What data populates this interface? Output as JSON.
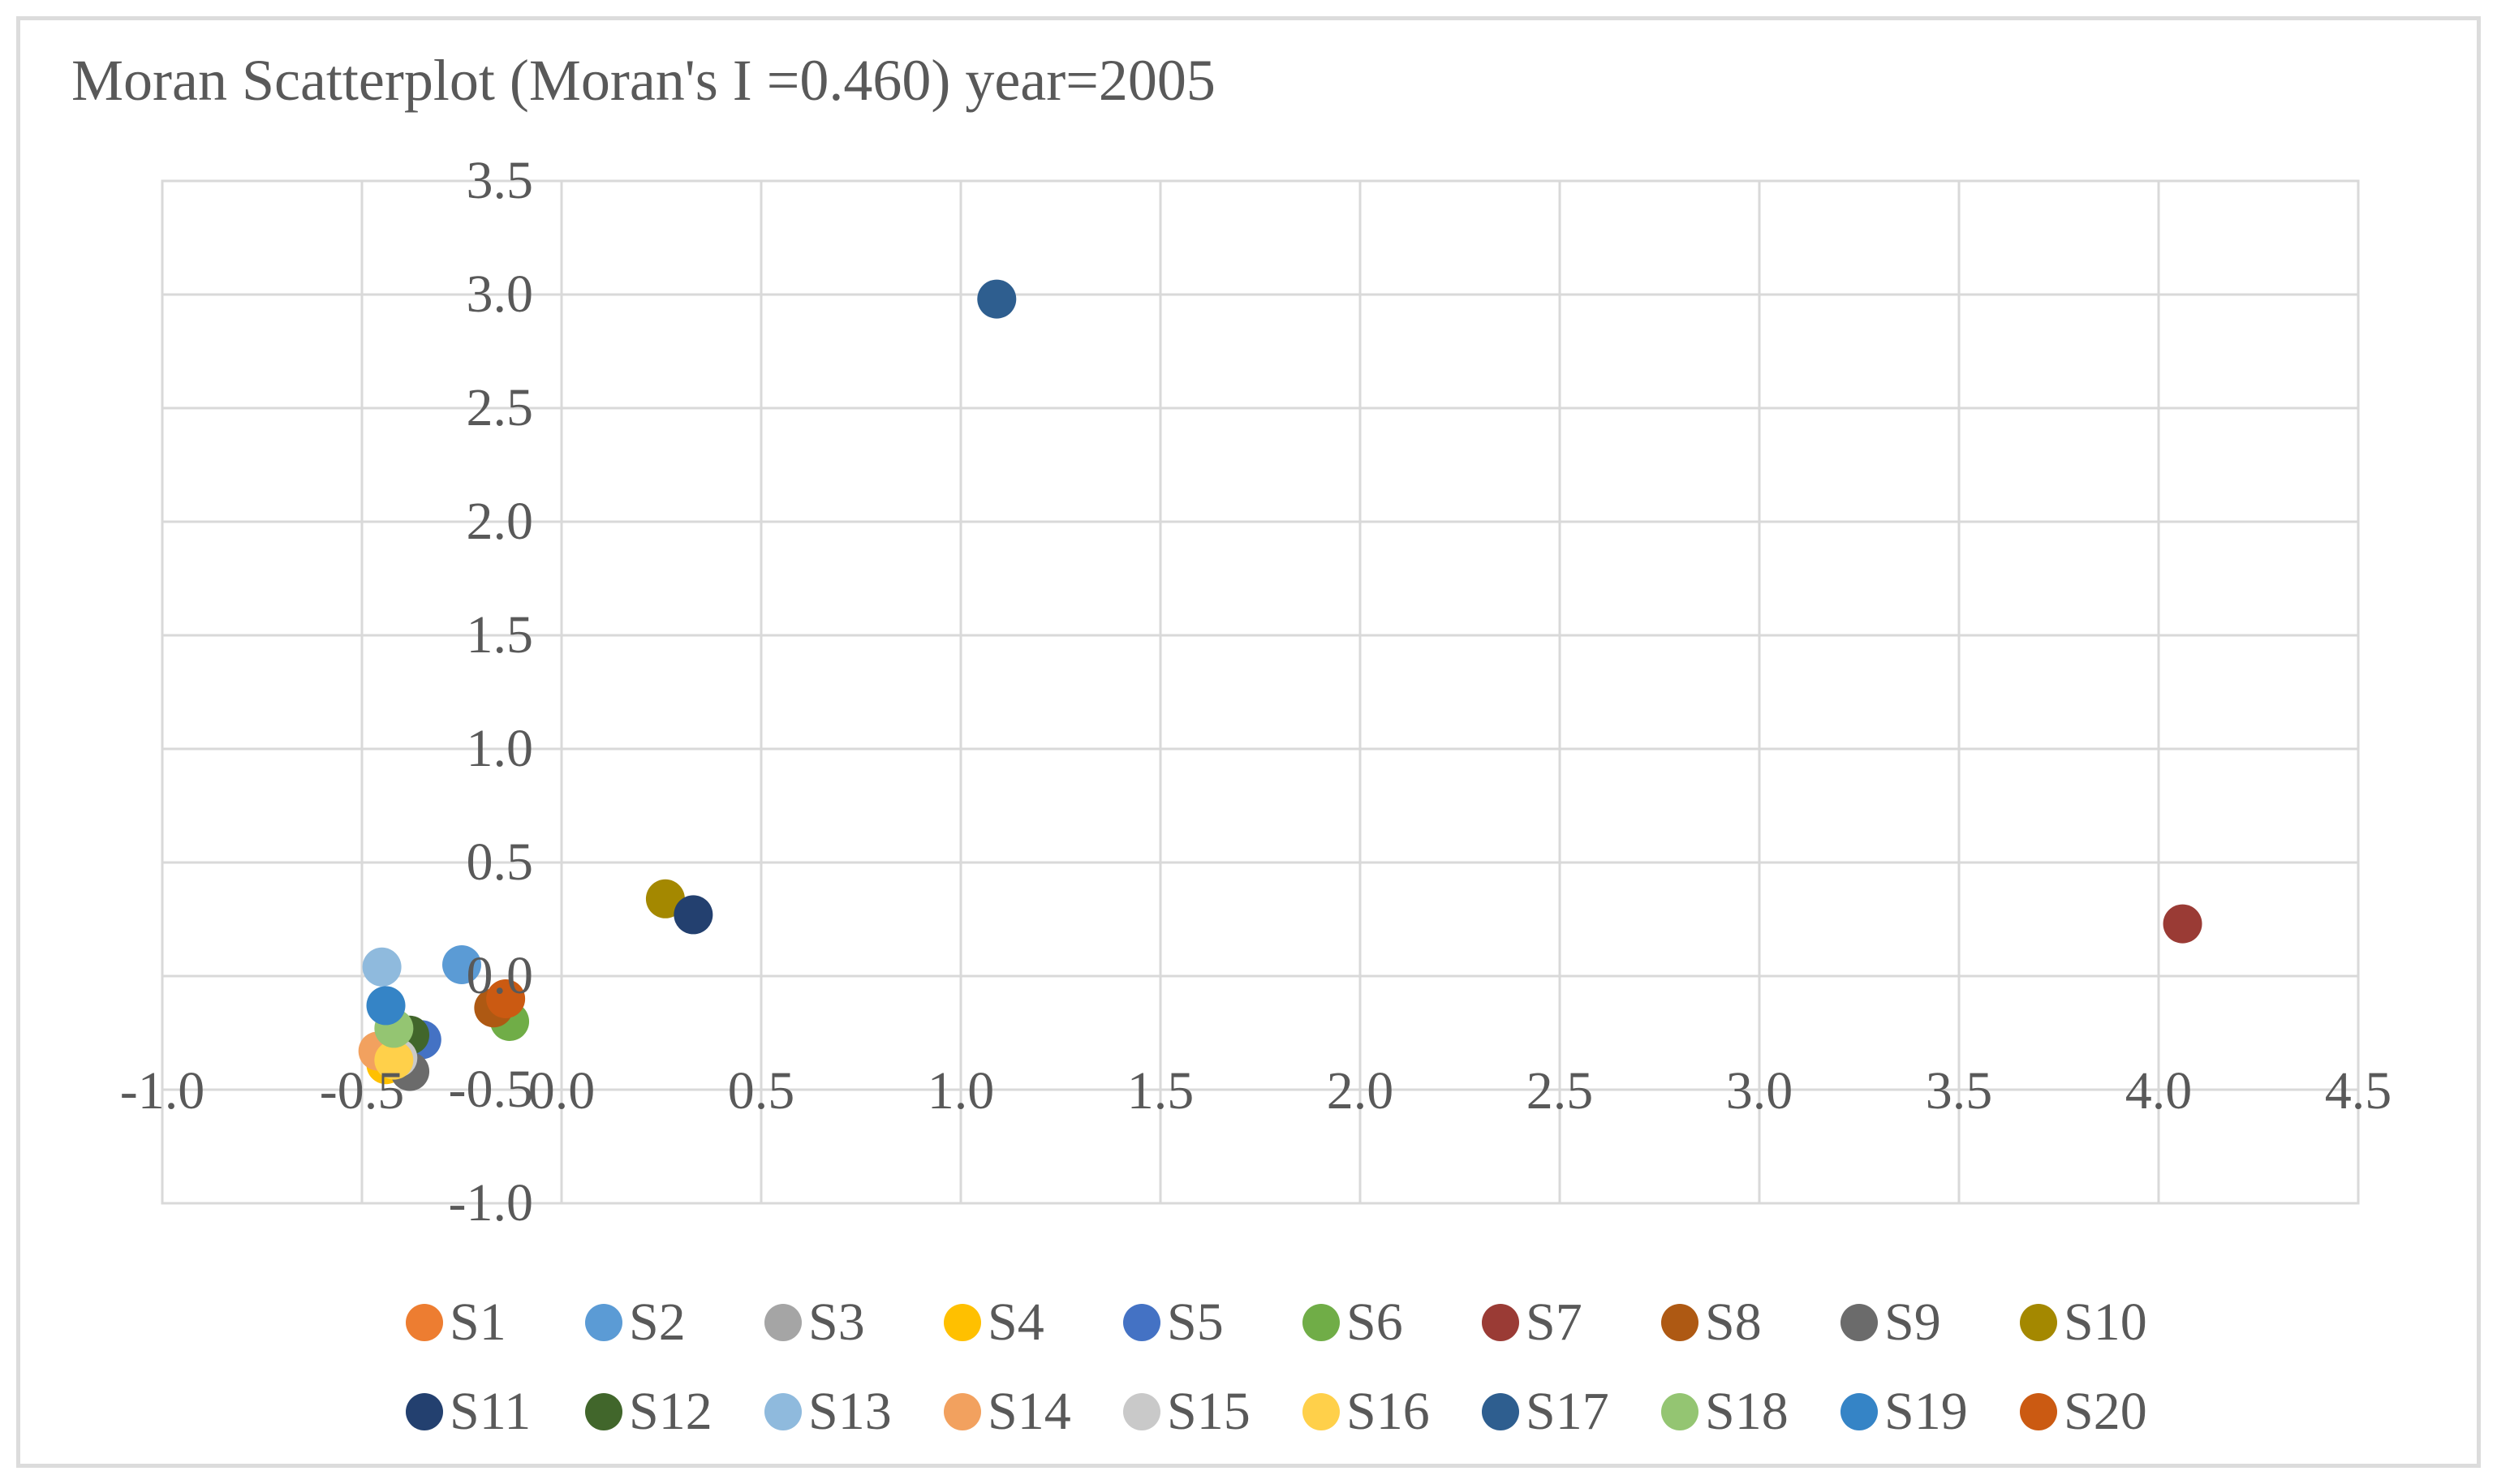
{
  "chart_data": {
    "type": "scatter",
    "title": "Moran Scatterplot (Moran's I =0.460) year=2005",
    "xlabel": "",
    "ylabel": "",
    "xlim": [
      -1.0,
      4.5
    ],
    "ylim": [
      -1.0,
      3.5
    ],
    "grid": true,
    "gridline_color": "#D9D9D9",
    "text_color": "#595959",
    "x_ticks": [
      "-1.0",
      "-0.5",
      "0.0",
      "0.5",
      "1.0",
      "1.5",
      "2.0",
      "2.5",
      "3.0",
      "3.5",
      "4.0",
      "4.5"
    ],
    "y_ticks": [
      "3.5",
      "3.0",
      "2.5",
      "2.0",
      "1.5",
      "1.0",
      "0.5",
      "0.0",
      "-0.5",
      "-1.0"
    ],
    "legend_position": "bottom",
    "legend_rows": [
      [
        "S1",
        "S2",
        "S3",
        "S4",
        "S5",
        "S6",
        "S7",
        "S8",
        "S9",
        "S10"
      ],
      [
        "S11",
        "S12",
        "S13",
        "S14",
        "S15",
        "S16",
        "S17",
        "S18",
        "S19",
        "S20"
      ]
    ],
    "series": [
      {
        "name": "S1",
        "color": "#ED7D31",
        "x": -0.42,
        "y": -0.36
      },
      {
        "name": "S2",
        "color": "#5B9BD5",
        "x": -0.25,
        "y": 0.05
      },
      {
        "name": "S3",
        "color": "#A5A5A5",
        "x": -0.4,
        "y": -0.35
      },
      {
        "name": "S4",
        "color": "#FFC000",
        "x": -0.44,
        "y": -0.39
      },
      {
        "name": "S5",
        "color": "#4472C4",
        "x": -0.35,
        "y": -0.28
      },
      {
        "name": "S6",
        "color": "#70AD47",
        "x": -0.13,
        "y": -0.2
      },
      {
        "name": "S7",
        "color": "#9A3B35",
        "x": 4.06,
        "y": 0.23
      },
      {
        "name": "S8",
        "color": "#AE5913",
        "x": -0.17,
        "y": -0.14
      },
      {
        "name": "S9",
        "color": "#6B6B6B",
        "x": -0.38,
        "y": -0.42
      },
      {
        "name": "S10",
        "color": "#A48800",
        "x": 0.26,
        "y": 0.34
      },
      {
        "name": "S11",
        "color": "#23406F",
        "x": 0.33,
        "y": 0.27
      },
      {
        "name": "S12",
        "color": "#41662B",
        "x": -0.38,
        "y": -0.26
      },
      {
        "name": "S13",
        "color": "#8FBADD",
        "x": -0.45,
        "y": 0.04
      },
      {
        "name": "S14",
        "color": "#F2A15F",
        "x": -0.46,
        "y": -0.33
      },
      {
        "name": "S15",
        "color": "#C9C9C9",
        "x": -0.41,
        "y": -0.36
      },
      {
        "name": "S16",
        "color": "#FFD04A",
        "x": -0.42,
        "y": -0.37
      },
      {
        "name": "S17",
        "color": "#2E5E8F",
        "x": 1.09,
        "y": 2.98
      },
      {
        "name": "S18",
        "color": "#94C572",
        "x": -0.42,
        "y": -0.23
      },
      {
        "name": "S19",
        "color": "#3584C6",
        "x": -0.44,
        "y": -0.13
      },
      {
        "name": "S20",
        "color": "#CB5A12",
        "x": -0.14,
        "y": -0.1
      }
    ]
  }
}
